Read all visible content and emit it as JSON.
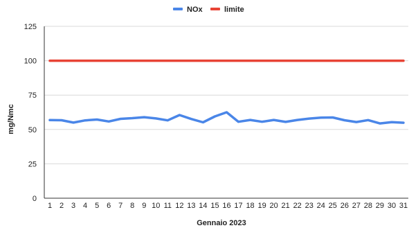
{
  "chart_data": {
    "type": "line",
    "title": "",
    "xlabel": "Gennaio 2023",
    "ylabel": "mg/Nmc",
    "ylim": [
      0,
      125
    ],
    "yticks": [
      0,
      25,
      50,
      75,
      100,
      125
    ],
    "categories": [
      "1",
      "2",
      "3",
      "4",
      "5",
      "6",
      "7",
      "8",
      "9",
      "10",
      "11",
      "12",
      "13",
      "14",
      "15",
      "16",
      "17",
      "18",
      "19",
      "20",
      "21",
      "22",
      "23",
      "24",
      "25",
      "26",
      "27",
      "28",
      "29",
      "30",
      "31"
    ],
    "grid": "horizontal",
    "legend": "top-center",
    "series": [
      {
        "name": "NOx",
        "color": "#4a86e8",
        "values": [
          56.8,
          56.7,
          55.0,
          56.6,
          57.2,
          55.8,
          57.7,
          58.2,
          58.9,
          58.0,
          56.6,
          60.5,
          57.6,
          55.2,
          59.5,
          62.5,
          55.6,
          56.9,
          55.6,
          56.9,
          55.5,
          56.9,
          57.9,
          58.6,
          58.7,
          56.7,
          55.4,
          56.8,
          54.4,
          55.3,
          54.9
        ]
      },
      {
        "name": "limite",
        "color": "#e84335",
        "values": [
          100,
          100,
          100,
          100,
          100,
          100,
          100,
          100,
          100,
          100,
          100,
          100,
          100,
          100,
          100,
          100,
          100,
          100,
          100,
          100,
          100,
          100,
          100,
          100,
          100,
          100,
          100,
          100,
          100,
          100,
          100
        ]
      }
    ]
  }
}
